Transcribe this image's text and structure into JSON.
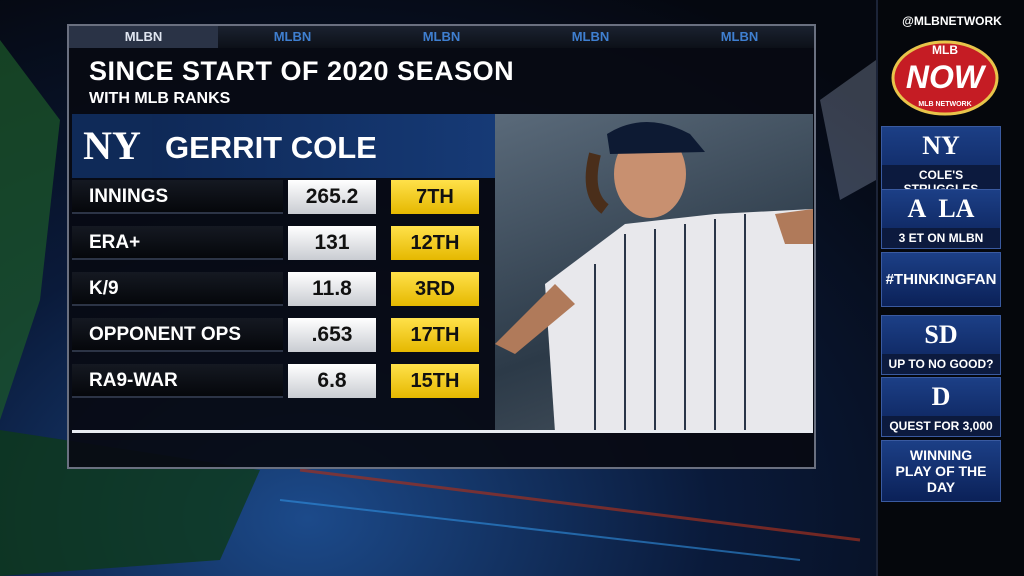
{
  "top_bar": {
    "labels": [
      "MLBN",
      "MLBN",
      "MLBN",
      "MLBN",
      "MLBN"
    ]
  },
  "header": {
    "title": "SINCE START OF 2020 SEASON",
    "subtitle": "WITH MLB RANKS"
  },
  "player": {
    "team_logo": "NY",
    "name": "GERRIT COLE"
  },
  "table": {
    "rows": [
      [
        "INNINGS",
        "265.2",
        "7TH"
      ],
      [
        "ERA+",
        "131",
        "12TH"
      ],
      [
        "K/9",
        "11.8",
        "3RD"
      ],
      [
        "OPPONENT OPS",
        ".653",
        "17TH"
      ],
      [
        "RA9-WAR",
        "6.8",
        "15TH"
      ]
    ]
  },
  "sidebar": {
    "handle": "@MLBNETWORK",
    "logo": {
      "top": "MLB",
      "main": "NOW",
      "bottom": "MLB NETWORK"
    },
    "items": [
      {
        "icons": [
          "NY"
        ],
        "label": "COLE'S STRUGGLES"
      },
      {
        "icons": [
          "A",
          "LA"
        ],
        "label": "3 ET ON MLBN"
      },
      {
        "icons": [],
        "label": "#THINKINGFAN"
      },
      {
        "icons": [
          "SD"
        ],
        "label": "UP TO NO GOOD?"
      },
      {
        "icons": [
          "D"
        ],
        "label": "QUEST FOR 3,000"
      },
      {
        "icons": [],
        "label": "WINNING PLAY OF THE DAY"
      }
    ]
  }
}
